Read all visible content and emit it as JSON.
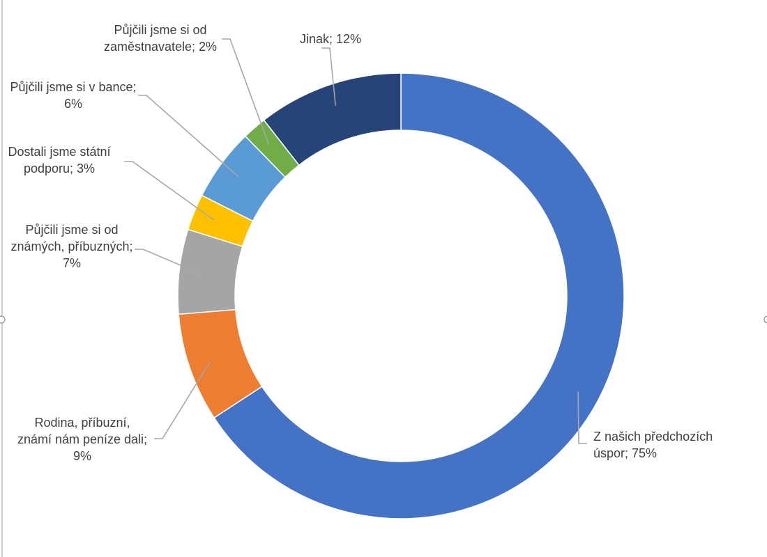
{
  "chart_data": {
    "type": "pie",
    "variant": "donut",
    "title": "",
    "legend": "none",
    "slices": [
      {
        "name": "Z našich předchozích úspor",
        "value": 75,
        "value_label": "75%",
        "label_lines": [
          "Z našich předchozích",
          "úspor; 75%"
        ],
        "color": "#4472C4"
      },
      {
        "name": "Rodina, příbuzní, známí nám peníze dali",
        "value": 9,
        "value_label": "9%",
        "label_lines": [
          "Rodina, příbuzní,",
          "známí nám peníze dali;",
          "9%"
        ],
        "color": "#ED7D31"
      },
      {
        "name": "Půjčili jsme si od známých, příbuzných",
        "value": 7,
        "value_label": "7%",
        "label_lines": [
          "Půjčili jsme si od",
          "známých, příbuzných;",
          "7%"
        ],
        "color": "#A5A5A5"
      },
      {
        "name": "Dostali jsme státní podporu",
        "value": 3,
        "value_label": "3%",
        "label_lines": [
          "Dostali jsme státní",
          "podporu; 3%"
        ],
        "color": "#FFC000"
      },
      {
        "name": "Půjčili jsme si v bance",
        "value": 6,
        "value_label": "6%",
        "label_lines": [
          "Půjčili jsme si v bance;",
          "6%"
        ],
        "color": "#5B9BD5"
      },
      {
        "name": "Půjčili jsme si od zaměstnavatele",
        "value": 2,
        "value_label": "2%",
        "label_lines": [
          "Půjčili jsme si od",
          "zaměstnavatele; 2%"
        ],
        "color": "#70AD47"
      },
      {
        "name": "Jinak",
        "value": 12,
        "value_label": "12%",
        "label_lines": [
          "Jinak; 12%"
        ],
        "color": "#264478"
      }
    ]
  }
}
